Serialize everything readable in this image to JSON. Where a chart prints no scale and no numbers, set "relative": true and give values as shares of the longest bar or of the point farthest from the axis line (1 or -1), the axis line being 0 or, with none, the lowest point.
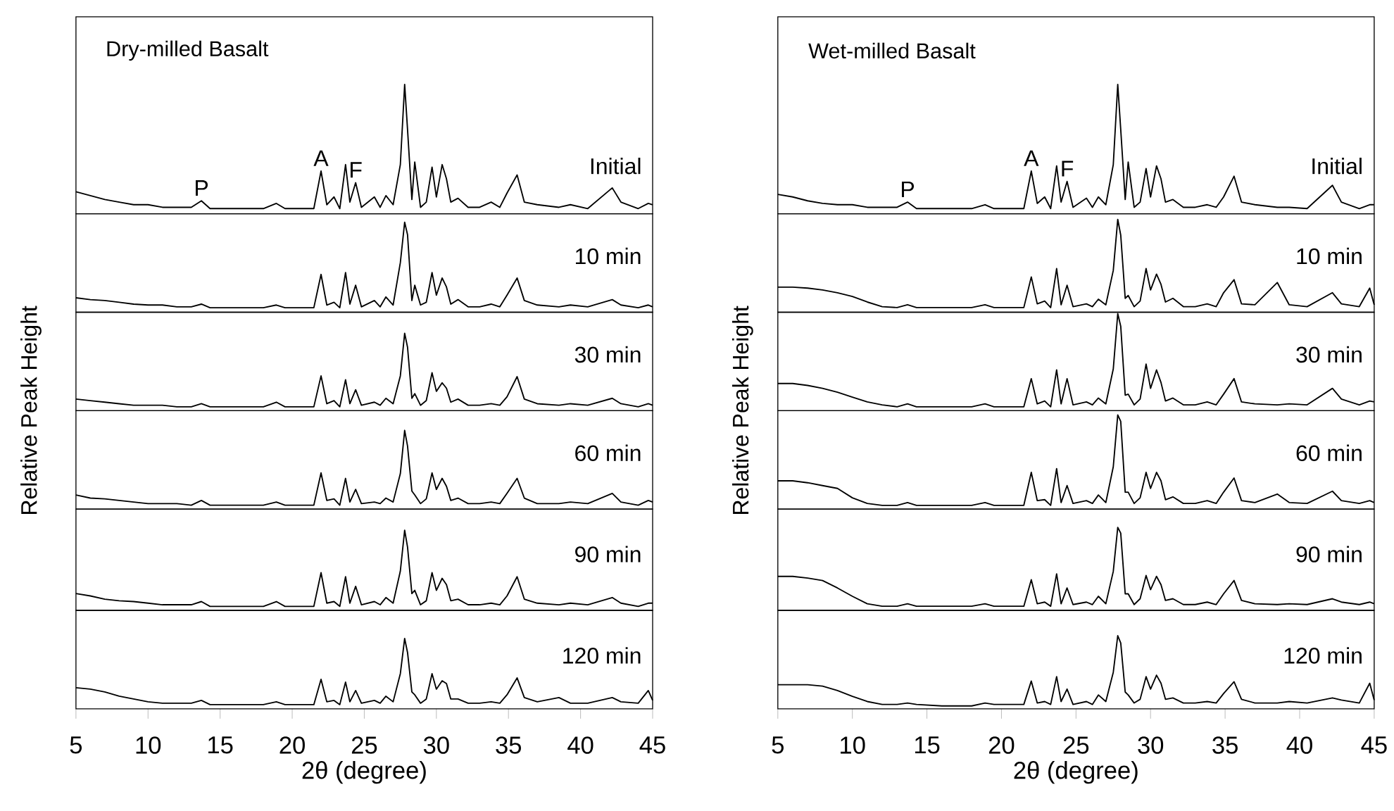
{
  "chart_data": [
    {
      "type": "line",
      "relative": true,
      "title": "Dry-milled Basalt",
      "tick_labels": false,
      "xlim": [
        5,
        45
      ],
      "color": "#000000",
      "annotations": [
        {
          "text": "P",
          "x": 13.7,
          "y": 0.1
        },
        {
          "text": "A",
          "x": 22.0,
          "y": 0.33
        },
        {
          "text": "F",
          "x": 24.4,
          "y": 0.24
        },
        "Initial"
      ],
      "x": [
        5,
        6,
        7,
        8,
        9,
        10,
        11,
        12,
        13,
        13.7,
        14.3,
        16,
        18,
        18.9,
        19.5,
        21.5,
        22.0,
        22.4,
        22.9,
        23.3,
        23.7,
        24.0,
        24.4,
        24.8,
        25.7,
        26.1,
        26.5,
        27.0,
        27.5,
        27.8,
        28.0,
        28.3,
        28.5,
        28.9,
        29.3,
        29.7,
        30.0,
        30.4,
        30.7,
        31.0,
        31.5,
        32.2,
        33.0,
        33.8,
        34.4,
        34.9,
        35.6,
        36.1,
        37,
        38.5,
        39.3,
        40.5,
        42.2,
        42.8,
        44,
        44.7,
        45
      ],
      "values": [
        0.17,
        0.14,
        0.11,
        0.09,
        0.07,
        0.07,
        0.05,
        0.05,
        0.05,
        0.1,
        0.04,
        0.04,
        0.04,
        0.08,
        0.04,
        0.04,
        0.33,
        0.07,
        0.13,
        0.04,
        0.38,
        0.09,
        0.24,
        0.05,
        0.13,
        0.05,
        0.14,
        0.07,
        0.38,
        1,
        0.65,
        0.11,
        0.4,
        0.05,
        0.09,
        0.36,
        0.13,
        0.38,
        0.27,
        0.09,
        0.12,
        0.05,
        0.05,
        0.09,
        0.05,
        0.16,
        0.3,
        0.09,
        0.07,
        0.05,
        0.07,
        0.04,
        0.2,
        0.09,
        0.04,
        0.08,
        0.07
      ]
    },
    {
      "type": "line",
      "relative": true,
      "tick_labels": false,
      "xlim": [
        5,
        45
      ],
      "color": "#000000",
      "annotations": [
        "10 min"
      ],
      "x": [
        5,
        6,
        7,
        8,
        9,
        10,
        11,
        12,
        13,
        13.7,
        14.3,
        16,
        18,
        18.9,
        19.5,
        21.5,
        22.0,
        22.4,
        22.9,
        23.3,
        23.7,
        24.0,
        24.4,
        24.8,
        25.7,
        26.1,
        26.5,
        27.0,
        27.5,
        27.8,
        28.0,
        28.3,
        28.5,
        28.9,
        29.3,
        29.7,
        30.0,
        30.4,
        30.7,
        31.0,
        31.5,
        32.2,
        33.0,
        33.8,
        34.4,
        34.9,
        35.6,
        36.1,
        37,
        38.5,
        39.3,
        40.5,
        42.2,
        42.8,
        44,
        44.7,
        45
      ],
      "values": [
        0.16,
        0.14,
        0.13,
        0.11,
        0.09,
        0.08,
        0.08,
        0.06,
        0.06,
        0.09,
        0.05,
        0.05,
        0.05,
        0.08,
        0.05,
        0.05,
        0.42,
        0.08,
        0.11,
        0.05,
        0.44,
        0.09,
        0.3,
        0.06,
        0.13,
        0.06,
        0.17,
        0.08,
        0.55,
        1,
        0.86,
        0.13,
        0.3,
        0.08,
        0.11,
        0.44,
        0.19,
        0.38,
        0.28,
        0.09,
        0.14,
        0.06,
        0.06,
        0.09,
        0.06,
        0.19,
        0.38,
        0.13,
        0.08,
        0.06,
        0.08,
        0.06,
        0.14,
        0.08,
        0.05,
        0.08,
        0.06
      ]
    },
    {
      "type": "line",
      "relative": true,
      "tick_labels": false,
      "xlim": [
        5,
        45
      ],
      "color": "#000000",
      "annotations": [
        "30 min"
      ],
      "x": [
        5,
        6,
        7,
        8,
        9,
        10,
        11,
        12,
        13,
        13.7,
        14.3,
        16,
        18,
        18.9,
        19.5,
        21.5,
        22.0,
        22.4,
        22.9,
        23.3,
        23.7,
        24.0,
        24.4,
        24.8,
        25.7,
        26.1,
        26.5,
        27.0,
        27.5,
        27.8,
        28.0,
        28.3,
        28.5,
        28.9,
        29.3,
        29.7,
        30.0,
        30.4,
        30.7,
        31.0,
        31.5,
        32.2,
        33.0,
        33.8,
        34.4,
        34.9,
        35.6,
        36.1,
        37,
        38.5,
        39.3,
        40.5,
        42.2,
        42.8,
        44,
        44.7,
        45
      ],
      "values": [
        0.15,
        0.13,
        0.11,
        0.09,
        0.07,
        0.07,
        0.07,
        0.05,
        0.05,
        0.09,
        0.05,
        0.05,
        0.05,
        0.11,
        0.05,
        0.05,
        0.45,
        0.09,
        0.13,
        0.05,
        0.4,
        0.09,
        0.27,
        0.07,
        0.11,
        0.07,
        0.16,
        0.09,
        0.45,
        1,
        0.82,
        0.16,
        0.22,
        0.07,
        0.13,
        0.49,
        0.25,
        0.36,
        0.29,
        0.11,
        0.15,
        0.07,
        0.07,
        0.09,
        0.07,
        0.18,
        0.44,
        0.15,
        0.09,
        0.07,
        0.09,
        0.07,
        0.16,
        0.09,
        0.05,
        0.09,
        0.07
      ]
    },
    {
      "type": "line",
      "relative": true,
      "ylabel": "Relative Peak Height",
      "tick_labels": false,
      "xlim": [
        5,
        45
      ],
      "color": "#000000",
      "annotations": [
        "60 min"
      ],
      "x": [
        5,
        6,
        7,
        8,
        9,
        10,
        11,
        12,
        13,
        13.7,
        14.3,
        16,
        18,
        18.9,
        19.5,
        21.5,
        22.0,
        22.4,
        22.9,
        23.3,
        23.7,
        24.0,
        24.4,
        24.8,
        25.7,
        26.1,
        26.5,
        27.0,
        27.5,
        27.8,
        28.0,
        28.3,
        28.5,
        28.9,
        29.3,
        29.7,
        30.0,
        30.4,
        30.7,
        31.0,
        31.5,
        32.2,
        33.0,
        33.8,
        34.4,
        34.9,
        35.6,
        36.1,
        37,
        38.5,
        39.3,
        40.5,
        42.2,
        42.8,
        44,
        44.7,
        45
      ],
      "values": [
        0.18,
        0.14,
        0.13,
        0.11,
        0.09,
        0.07,
        0.07,
        0.07,
        0.05,
        0.11,
        0.05,
        0.05,
        0.05,
        0.09,
        0.05,
        0.05,
        0.46,
        0.11,
        0.13,
        0.05,
        0.39,
        0.09,
        0.25,
        0.07,
        0.09,
        0.07,
        0.14,
        0.09,
        0.45,
        1,
        0.8,
        0.23,
        0.18,
        0.07,
        0.13,
        0.46,
        0.25,
        0.39,
        0.29,
        0.11,
        0.14,
        0.07,
        0.07,
        0.09,
        0.07,
        0.2,
        0.39,
        0.14,
        0.07,
        0.07,
        0.09,
        0.07,
        0.2,
        0.09,
        0.05,
        0.11,
        0.09
      ]
    },
    {
      "type": "line",
      "relative": true,
      "tick_labels": false,
      "xlim": [
        5,
        45
      ],
      "color": "#000000",
      "annotations": [
        "90 min"
      ],
      "x": [
        5,
        6,
        7,
        8,
        9,
        10,
        11,
        12,
        13,
        13.7,
        14.3,
        16,
        18,
        18.9,
        19.5,
        21.5,
        22.0,
        22.4,
        22.9,
        23.3,
        23.7,
        24.0,
        24.4,
        24.8,
        25.7,
        26.1,
        26.5,
        27.0,
        27.5,
        27.8,
        28.0,
        28.3,
        28.5,
        28.9,
        29.3,
        29.7,
        30.0,
        30.4,
        30.7,
        31.0,
        31.5,
        32.2,
        33.0,
        33.8,
        34.4,
        34.9,
        35.6,
        36.1,
        37,
        38.5,
        39.3,
        40.5,
        42.2,
        42.8,
        44,
        44.7,
        45
      ],
      "values": [
        0.21,
        0.18,
        0.14,
        0.12,
        0.11,
        0.09,
        0.07,
        0.07,
        0.07,
        0.11,
        0.05,
        0.05,
        0.05,
        0.11,
        0.05,
        0.05,
        0.47,
        0.09,
        0.11,
        0.05,
        0.42,
        0.09,
        0.3,
        0.07,
        0.11,
        0.07,
        0.16,
        0.09,
        0.49,
        1,
        0.79,
        0.21,
        0.25,
        0.07,
        0.12,
        0.47,
        0.25,
        0.4,
        0.32,
        0.12,
        0.14,
        0.07,
        0.07,
        0.09,
        0.07,
        0.18,
        0.42,
        0.14,
        0.09,
        0.07,
        0.09,
        0.07,
        0.16,
        0.09,
        0.05,
        0.09,
        0.09
      ]
    },
    {
      "type": "line",
      "relative": true,
      "xlabel": "2θ (degree)",
      "tick_labels": "x",
      "xlim": [
        5,
        45
      ],
      "xticks": [
        5,
        10,
        15,
        20,
        25,
        30,
        35,
        40,
        45
      ],
      "color": "#000000",
      "annotations": [
        "120 min"
      ],
      "x": [
        5,
        6,
        7,
        8,
        9,
        10,
        11,
        12,
        13,
        13.7,
        14.3,
        16,
        18,
        18.9,
        19.5,
        21.5,
        22.0,
        22.4,
        22.9,
        23.3,
        23.7,
        24.0,
        24.4,
        24.8,
        25.7,
        26.1,
        26.5,
        27.0,
        27.5,
        27.8,
        28.0,
        28.3,
        28.5,
        28.9,
        29.3,
        29.7,
        30.0,
        30.4,
        30.7,
        31.0,
        31.5,
        32.2,
        33.0,
        33.8,
        34.4,
        34.9,
        35.6,
        36.1,
        37,
        38.5,
        39.3,
        40.5,
        42.2,
        42.8,
        44,
        44.7,
        45
      ],
      "values": [
        0.3,
        0.28,
        0.24,
        0.18,
        0.14,
        0.1,
        0.08,
        0.08,
        0.08,
        0.12,
        0.06,
        0.06,
        0.06,
        0.1,
        0.06,
        0.06,
        0.42,
        0.1,
        0.12,
        0.06,
        0.38,
        0.1,
        0.26,
        0.08,
        0.12,
        0.08,
        0.18,
        0.1,
        0.5,
        1,
        0.8,
        0.24,
        0.2,
        0.08,
        0.14,
        0.5,
        0.28,
        0.4,
        0.36,
        0.14,
        0.14,
        0.08,
        0.08,
        0.1,
        0.08,
        0.2,
        0.44,
        0.16,
        0.1,
        0.16,
        0.08,
        0.08,
        0.16,
        0.1,
        0.08,
        0.26,
        0.12
      ]
    },
    {
      "type": "line",
      "relative": true,
      "title": "Wet-milled Basalt",
      "tick_labels": false,
      "xlim": [
        5,
        45
      ],
      "color": "#000000",
      "annotations": [
        {
          "text": "P",
          "x": 13.7,
          "y": 0.09
        },
        {
          "text": "A",
          "x": 22.0,
          "y": 0.33
        },
        {
          "text": "F",
          "x": 24.4,
          "y": 0.25
        },
        "Initial"
      ],
      "x": [
        5,
        6,
        7,
        8,
        9,
        10,
        11,
        12,
        13,
        13.7,
        14.3,
        16,
        18,
        18.9,
        19.5,
        21.5,
        22.0,
        22.4,
        22.9,
        23.3,
        23.7,
        24.0,
        24.4,
        24.8,
        25.7,
        26.1,
        26.5,
        27.0,
        27.5,
        27.8,
        28.0,
        28.3,
        28.5,
        28.9,
        29.3,
        29.7,
        30.0,
        30.4,
        30.7,
        31.0,
        31.5,
        32.2,
        33.0,
        33.8,
        34.4,
        34.9,
        35.6,
        36.1,
        37,
        38.5,
        39.3,
        40.5,
        42.2,
        42.8,
        44,
        44.7,
        45
      ],
      "values": [
        0.15,
        0.13,
        0.1,
        0.08,
        0.07,
        0.07,
        0.05,
        0.05,
        0.05,
        0.09,
        0.04,
        0.04,
        0.04,
        0.07,
        0.04,
        0.04,
        0.33,
        0.08,
        0.13,
        0.04,
        0.37,
        0.09,
        0.25,
        0.05,
        0.12,
        0.05,
        0.13,
        0.07,
        0.38,
        1,
        0.65,
        0.11,
        0.4,
        0.05,
        0.09,
        0.35,
        0.13,
        0.37,
        0.27,
        0.09,
        0.11,
        0.05,
        0.05,
        0.07,
        0.05,
        0.13,
        0.29,
        0.09,
        0.07,
        0.05,
        0.05,
        0.04,
        0.22,
        0.09,
        0.04,
        0.07,
        0.07
      ]
    },
    {
      "type": "line",
      "relative": true,
      "tick_labels": false,
      "xlim": [
        5,
        45
      ],
      "color": "#000000",
      "annotations": [
        "10 min"
      ],
      "x": [
        5,
        6,
        7,
        8,
        9,
        10,
        11,
        12,
        13,
        13.7,
        14.3,
        16,
        18,
        18.9,
        19.5,
        21.5,
        22.0,
        22.4,
        22.9,
        23.3,
        23.7,
        24.0,
        24.4,
        24.8,
        25.7,
        26.1,
        26.5,
        27.0,
        27.5,
        27.8,
        28.0,
        28.3,
        28.5,
        28.9,
        29.3,
        29.7,
        30.0,
        30.4,
        30.7,
        31.0,
        31.5,
        32.2,
        33.0,
        33.8,
        34.4,
        34.9,
        35.6,
        36.1,
        37,
        38.5,
        39.3,
        40.5,
        42.2,
        42.8,
        44,
        44.7,
        45
      ],
      "values": [
        0.27,
        0.27,
        0.26,
        0.24,
        0.21,
        0.17,
        0.11,
        0.06,
        0.05,
        0.08,
        0.05,
        0.05,
        0.05,
        0.08,
        0.05,
        0.05,
        0.38,
        0.09,
        0.12,
        0.05,
        0.47,
        0.08,
        0.29,
        0.06,
        0.09,
        0.06,
        0.14,
        0.08,
        0.45,
        1,
        0.83,
        0.15,
        0.18,
        0.06,
        0.12,
        0.47,
        0.24,
        0.41,
        0.3,
        0.11,
        0.15,
        0.06,
        0.06,
        0.09,
        0.06,
        0.21,
        0.35,
        0.09,
        0.08,
        0.32,
        0.08,
        0.06,
        0.21,
        0.09,
        0.06,
        0.26,
        0.08
      ]
    },
    {
      "type": "line",
      "relative": true,
      "tick_labels": false,
      "xlim": [
        5,
        45
      ],
      "color": "#000000",
      "annotations": [
        "30 min"
      ],
      "x": [
        5,
        6,
        7,
        8,
        9,
        10,
        11,
        12,
        13,
        13.7,
        14.3,
        16,
        18,
        18.9,
        19.5,
        21.5,
        22.0,
        22.4,
        22.9,
        23.3,
        23.7,
        24.0,
        24.4,
        24.8,
        25.7,
        26.1,
        26.5,
        27.0,
        27.5,
        27.8,
        28.0,
        28.3,
        28.5,
        28.9,
        29.3,
        29.7,
        30.0,
        30.4,
        30.7,
        31.0,
        31.5,
        32.2,
        33.0,
        33.8,
        34.4,
        34.9,
        35.6,
        36.1,
        37,
        38.5,
        39.3,
        40.5,
        42.2,
        42.8,
        44,
        44.7,
        45
      ],
      "values": [
        0.28,
        0.28,
        0.26,
        0.23,
        0.19,
        0.14,
        0.09,
        0.06,
        0.04,
        0.07,
        0.04,
        0.04,
        0.04,
        0.07,
        0.04,
        0.04,
        0.33,
        0.07,
        0.1,
        0.04,
        0.42,
        0.07,
        0.33,
        0.06,
        0.09,
        0.06,
        0.13,
        0.07,
        0.43,
        1,
        0.87,
        0.16,
        0.17,
        0.06,
        0.12,
        0.48,
        0.23,
        0.42,
        0.29,
        0.1,
        0.13,
        0.06,
        0.06,
        0.09,
        0.06,
        0.17,
        0.33,
        0.09,
        0.07,
        0.06,
        0.07,
        0.06,
        0.23,
        0.12,
        0.06,
        0.1,
        0.09
      ]
    },
    {
      "type": "line",
      "relative": true,
      "ylabel": "Relative Peak Height",
      "tick_labels": false,
      "xlim": [
        5,
        45
      ],
      "color": "#000000",
      "annotations": [
        "60 min"
      ],
      "x": [
        5,
        6,
        7,
        8,
        9,
        10,
        11,
        12,
        13,
        13.7,
        14.3,
        16,
        18,
        18.9,
        19.5,
        21.5,
        22.0,
        22.4,
        22.9,
        23.3,
        23.7,
        24.0,
        24.4,
        24.8,
        25.7,
        26.1,
        26.5,
        27.0,
        27.5,
        27.8,
        28.0,
        28.3,
        28.5,
        28.9,
        29.3,
        29.7,
        30.0,
        30.4,
        30.7,
        31.0,
        31.5,
        32.2,
        33.0,
        33.8,
        34.4,
        34.9,
        35.6,
        36.1,
        37,
        38.5,
        39.3,
        40.5,
        42.2,
        42.8,
        44,
        44.7,
        45
      ],
      "values": [
        0.3,
        0.3,
        0.28,
        0.25,
        0.22,
        0.12,
        0.06,
        0.04,
        0.04,
        0.07,
        0.04,
        0.04,
        0.04,
        0.07,
        0.04,
        0.04,
        0.39,
        0.09,
        0.1,
        0.04,
        0.43,
        0.07,
        0.25,
        0.06,
        0.09,
        0.06,
        0.15,
        0.07,
        0.45,
        1,
        0.93,
        0.18,
        0.18,
        0.06,
        0.12,
        0.39,
        0.22,
        0.39,
        0.3,
        0.1,
        0.13,
        0.06,
        0.06,
        0.09,
        0.06,
        0.18,
        0.33,
        0.09,
        0.07,
        0.16,
        0.07,
        0.06,
        0.19,
        0.09,
        0.06,
        0.09,
        0.07
      ]
    },
    {
      "type": "line",
      "relative": true,
      "tick_labels": false,
      "xlim": [
        5,
        45
      ],
      "color": "#000000",
      "annotations": [
        "90 min"
      ],
      "x": [
        5,
        6,
        7,
        8,
        9,
        10,
        11,
        12,
        13,
        13.7,
        14.3,
        16,
        18,
        18.9,
        19.5,
        21.5,
        22.0,
        22.4,
        22.9,
        23.3,
        23.7,
        24.0,
        24.4,
        24.8,
        25.7,
        26.1,
        26.5,
        27.0,
        27.5,
        27.8,
        28.0,
        28.3,
        28.5,
        28.9,
        29.3,
        29.7,
        30.0,
        30.4,
        30.7,
        31.0,
        31.5,
        32.2,
        33.0,
        33.8,
        34.4,
        34.9,
        35.6,
        36.1,
        37,
        38.5,
        39.3,
        40.5,
        42.2,
        42.8,
        44,
        44.7,
        45
      ],
      "values": [
        0.41,
        0.41,
        0.39,
        0.36,
        0.27,
        0.17,
        0.08,
        0.05,
        0.05,
        0.08,
        0.05,
        0.05,
        0.05,
        0.08,
        0.05,
        0.05,
        0.37,
        0.08,
        0.1,
        0.05,
        0.44,
        0.08,
        0.27,
        0.07,
        0.1,
        0.07,
        0.17,
        0.08,
        0.47,
        1,
        0.93,
        0.2,
        0.2,
        0.07,
        0.14,
        0.42,
        0.25,
        0.41,
        0.31,
        0.12,
        0.14,
        0.07,
        0.07,
        0.1,
        0.07,
        0.2,
        0.36,
        0.12,
        0.08,
        0.07,
        0.08,
        0.07,
        0.14,
        0.1,
        0.07,
        0.1,
        0.08
      ]
    },
    {
      "type": "line",
      "relative": true,
      "xlabel": "2θ (degree)",
      "tick_labels": "x",
      "xlim": [
        5,
        45
      ],
      "xticks": [
        5,
        10,
        15,
        20,
        25,
        30,
        35,
        40,
        45
      ],
      "color": "#000000",
      "annotations": [
        "120 min"
      ],
      "x": [
        5,
        6,
        7,
        8,
        9,
        10,
        11,
        12,
        13,
        13.7,
        14.3,
        16,
        18,
        18.9,
        19.5,
        21.5,
        22.0,
        22.4,
        22.9,
        23.3,
        23.7,
        24.0,
        24.4,
        24.8,
        25.7,
        26.1,
        26.5,
        27.0,
        27.5,
        27.8,
        28.0,
        28.3,
        28.5,
        28.9,
        29.3,
        29.7,
        30.0,
        30.4,
        30.7,
        31.0,
        31.5,
        32.2,
        33.0,
        33.8,
        34.4,
        34.9,
        35.6,
        36.1,
        37,
        38.5,
        39.3,
        40.5,
        42.2,
        42.8,
        44,
        44.7,
        45
      ],
      "values": [
        0.33,
        0.33,
        0.33,
        0.31,
        0.25,
        0.17,
        0.1,
        0.06,
        0.06,
        0.08,
        0.06,
        0.04,
        0.04,
        0.08,
        0.06,
        0.06,
        0.38,
        0.08,
        0.1,
        0.06,
        0.44,
        0.1,
        0.27,
        0.06,
        0.1,
        0.06,
        0.19,
        0.1,
        0.5,
        1,
        0.9,
        0.23,
        0.19,
        0.08,
        0.13,
        0.44,
        0.27,
        0.46,
        0.35,
        0.13,
        0.15,
        0.08,
        0.08,
        0.1,
        0.08,
        0.21,
        0.37,
        0.13,
        0.08,
        0.08,
        0.1,
        0.08,
        0.15,
        0.12,
        0.08,
        0.35,
        0.12
      ]
    }
  ]
}
